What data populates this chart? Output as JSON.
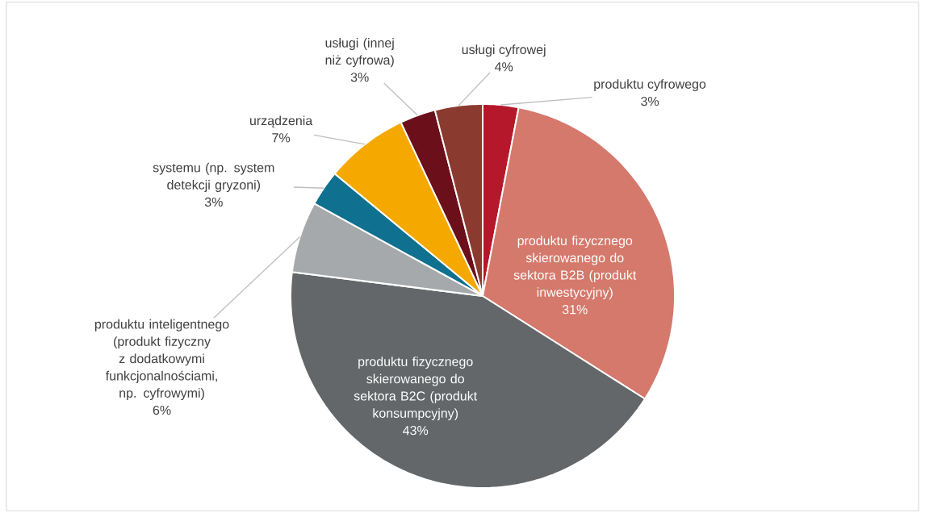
{
  "chart_data": {
    "type": "pie",
    "categories": [
      "produktu cyfrowego",
      "produktu fizycznego skierowanego do sektora B2B (produkt inwestycyjny)",
      "produktu fizycznego skierowanego do sektora B2C (produkt konsumpcyjny)",
      "produktu inteligentnego (produkt fizyczny z dodatkowymi funkcjonalnościami, np. cyfrowymi)",
      "systemu (np. system detekcji gryzoni)",
      "urządzenia",
      "usługi (innej niż cyfrowa)",
      "usługi cyfrowej"
    ],
    "values": [
      3,
      31,
      43,
      6,
      3,
      7,
      3,
      4
    ],
    "colors": [
      "#b5182a",
      "#d4796c",
      "#636769",
      "#a6a9ab",
      "#10708f",
      "#f5a800",
      "#6b0f1a",
      "#8b3a2f"
    ],
    "value_labels": [
      "3%",
      "31%",
      "43%",
      "6%",
      "3%",
      "7%",
      "3%",
      "4%"
    ]
  }
}
